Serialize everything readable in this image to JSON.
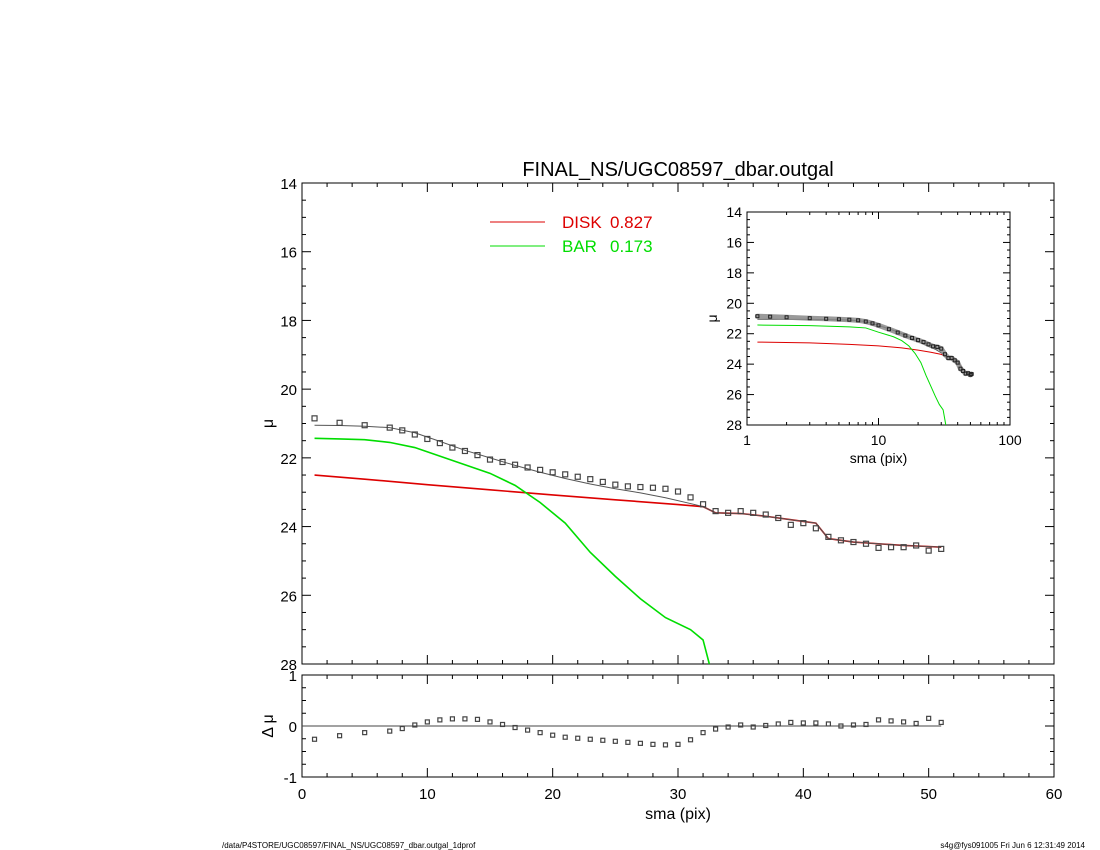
{
  "colors": {
    "disk": "#dd0000",
    "bar": "#00dd00",
    "model": "#555555",
    "data": "#444444",
    "axis": "#000000"
  },
  "footer": {
    "left": "/data/P4STORE/UGC08597/FINAL_NS/UGC08597_dbar.outgal_1dprof",
    "right": "s4g@fys091005  Fri Jun  6 12:31:49 2014"
  },
  "chart_data": [
    {
      "type": "line",
      "panel": "main",
      "title": "FINAL_NS/UGC08597_dbar.outgal",
      "xlabel": "",
      "ylabel": "μ",
      "xlim": [
        0,
        60
      ],
      "ylim": [
        28,
        14
      ],
      "y_inverted": true,
      "yticks": [
        14,
        16,
        18,
        20,
        22,
        24,
        26,
        28
      ],
      "legend_placement": "top-center",
      "legend": [
        {
          "label": "DISK",
          "value": "0.827",
          "color": "#dd0000"
        },
        {
          "label": "BAR",
          "value": "0.173",
          "color": "#00dd00"
        }
      ],
      "series": [
        {
          "name": "DISK",
          "kind": "line",
          "color": "#dd0000",
          "x": [
            1,
            5,
            10,
            15,
            20,
            25,
            30,
            32,
            33,
            35,
            37,
            39,
            40,
            41,
            42,
            44,
            46,
            48,
            50,
            51
          ],
          "y": [
            22.5,
            22.62,
            22.78,
            22.93,
            23.08,
            23.22,
            23.36,
            23.42,
            23.6,
            23.62,
            23.7,
            23.8,
            23.85,
            23.9,
            24.35,
            24.45,
            24.5,
            24.55,
            24.58,
            24.6
          ]
        },
        {
          "name": "BAR",
          "kind": "line",
          "color": "#00dd00",
          "x": [
            1,
            3,
            5,
            7,
            9,
            11,
            13,
            15,
            17,
            19,
            21,
            23,
            25,
            27,
            29,
            31,
            32,
            32.5
          ],
          "y": [
            21.43,
            21.45,
            21.47,
            21.55,
            21.7,
            21.95,
            22.2,
            22.45,
            22.8,
            23.3,
            23.9,
            24.75,
            25.45,
            26.1,
            26.65,
            27.0,
            27.3,
            28.0
          ]
        },
        {
          "name": "",
          "kind": "model-line",
          "color": "#555555",
          "x": [
            1,
            3,
            5,
            7,
            9,
            11,
            13,
            15,
            17,
            19,
            21,
            23,
            25,
            27,
            29,
            31,
            32,
            33,
            35,
            37,
            39,
            40,
            41,
            42,
            44,
            46,
            48,
            50,
            51
          ],
          "y": [
            21.05,
            21.06,
            21.08,
            21.12,
            21.27,
            21.52,
            21.78,
            22.0,
            22.22,
            22.42,
            22.6,
            22.76,
            22.9,
            23.02,
            23.16,
            23.33,
            23.42,
            23.6,
            23.62,
            23.7,
            23.8,
            23.85,
            23.9,
            24.35,
            24.45,
            24.5,
            24.55,
            24.58,
            24.6
          ]
        },
        {
          "name": "",
          "kind": "data-points",
          "color": "#444444",
          "x": [
            1,
            3,
            5,
            7,
            8,
            9,
            10,
            11,
            12,
            13,
            14,
            15,
            16,
            17,
            18,
            19,
            20,
            21,
            22,
            23,
            24,
            25,
            26,
            27,
            28,
            29,
            30,
            31,
            32,
            33,
            34,
            35,
            36,
            37,
            38,
            39,
            40,
            41,
            42,
            43,
            44,
            45,
            46,
            47,
            48,
            49,
            50,
            51
          ],
          "y": [
            20.85,
            20.98,
            21.05,
            21.12,
            21.2,
            21.32,
            21.45,
            21.57,
            21.7,
            21.8,
            21.92,
            22.05,
            22.12,
            22.2,
            22.28,
            22.35,
            22.42,
            22.48,
            22.55,
            22.62,
            22.7,
            22.78,
            22.83,
            22.85,
            22.87,
            22.9,
            22.98,
            23.15,
            23.35,
            23.55,
            23.6,
            23.55,
            23.6,
            23.65,
            23.75,
            23.95,
            23.9,
            24.05,
            24.3,
            24.4,
            24.45,
            24.5,
            24.62,
            24.6,
            24.6,
            24.55,
            24.7,
            24.65
          ]
        }
      ]
    },
    {
      "type": "scatter",
      "panel": "residual",
      "xlabel": "sma (pix)",
      "ylabel": "Δ μ",
      "xlim": [
        0,
        60
      ],
      "ylim": [
        -1,
        1
      ],
      "xticks": [
        0,
        10,
        20,
        30,
        40,
        50,
        60
      ],
      "yticks": [
        1,
        0,
        -1
      ],
      "reference_line": 0,
      "series": [
        {
          "name": "",
          "color": "#444444",
          "x": [
            1,
            3,
            5,
            7,
            8,
            9,
            10,
            11,
            12,
            13,
            14,
            15,
            16,
            17,
            18,
            19,
            20,
            21,
            22,
            23,
            24,
            25,
            26,
            27,
            28,
            29,
            30,
            31,
            32,
            33,
            34,
            35,
            36,
            37,
            38,
            39,
            40,
            41,
            42,
            43,
            44,
            45,
            46,
            47,
            48,
            49,
            50,
            51
          ],
          "y": [
            -0.26,
            -0.19,
            -0.13,
            -0.1,
            -0.05,
            0.02,
            0.08,
            0.12,
            0.14,
            0.14,
            0.13,
            0.08,
            0.03,
            -0.03,
            -0.08,
            -0.13,
            -0.18,
            -0.22,
            -0.24,
            -0.26,
            -0.28,
            -0.3,
            -0.32,
            -0.34,
            -0.36,
            -0.37,
            -0.36,
            -0.27,
            -0.13,
            -0.06,
            -0.02,
            0.02,
            -0.02,
            0.01,
            0.04,
            0.07,
            0.06,
            0.06,
            0.04,
            0.0,
            0.02,
            0.03,
            0.12,
            0.1,
            0.08,
            0.05,
            0.15,
            0.07
          ]
        }
      ]
    },
    {
      "type": "line",
      "panel": "inset",
      "xlabel": "sma (pix)",
      "ylabel": "μ",
      "xlim": [
        1,
        100
      ],
      "x_scale": "log",
      "xticks": [
        1,
        10,
        100
      ],
      "ylim": [
        28,
        14
      ],
      "y_inverted": true,
      "yticks": [
        14,
        16,
        18,
        20,
        22,
        24,
        26,
        28
      ],
      "series": [
        {
          "name": "DISK",
          "color": "#dd0000",
          "x": [
            1.2,
            3,
            6,
            10,
            15,
            20,
            25,
            30,
            35,
            40,
            45,
            51
          ],
          "y": [
            22.55,
            22.6,
            22.7,
            22.8,
            22.93,
            23.08,
            23.22,
            23.36,
            23.6,
            23.85,
            24.45,
            24.6
          ]
        },
        {
          "name": "BAR",
          "color": "#00dd00",
          "x": [
            1.2,
            3,
            6,
            8,
            10,
            13,
            15,
            17,
            19,
            21,
            23,
            25,
            27,
            29,
            31,
            32.5
          ],
          "y": [
            21.43,
            21.47,
            21.55,
            21.62,
            21.9,
            22.2,
            22.45,
            22.8,
            23.3,
            23.9,
            24.75,
            25.45,
            26.1,
            26.65,
            27.0,
            28.0
          ]
        },
        {
          "name": "",
          "color": "#555555",
          "x": [
            1.2,
            3,
            6,
            8,
            10,
            13,
            15,
            19,
            23,
            27,
            31,
            35,
            40,
            45,
            51
          ],
          "y": [
            21.05,
            21.06,
            21.1,
            21.2,
            21.45,
            21.78,
            22.0,
            22.42,
            22.76,
            23.02,
            23.33,
            23.62,
            23.85,
            24.45,
            24.6
          ]
        },
        {
          "name": "",
          "kind": "data-points",
          "color": "#444444",
          "x": [
            1.2,
            1.5,
            2,
            3,
            4,
            5,
            6,
            7,
            8,
            9,
            10,
            12,
            14,
            16,
            18,
            20,
            22,
            24,
            26,
            28,
            30,
            32,
            34,
            36,
            38,
            40,
            42,
            44,
            46,
            48,
            50,
            51
          ],
          "y": [
            20.85,
            20.88,
            20.92,
            20.98,
            21.02,
            21.05,
            21.08,
            21.12,
            21.2,
            21.32,
            21.45,
            21.7,
            21.92,
            22.12,
            22.28,
            22.42,
            22.55,
            22.7,
            22.83,
            22.87,
            22.98,
            23.35,
            23.6,
            23.6,
            23.75,
            23.9,
            24.3,
            24.45,
            24.62,
            24.6,
            24.7,
            24.65
          ]
        }
      ]
    }
  ]
}
